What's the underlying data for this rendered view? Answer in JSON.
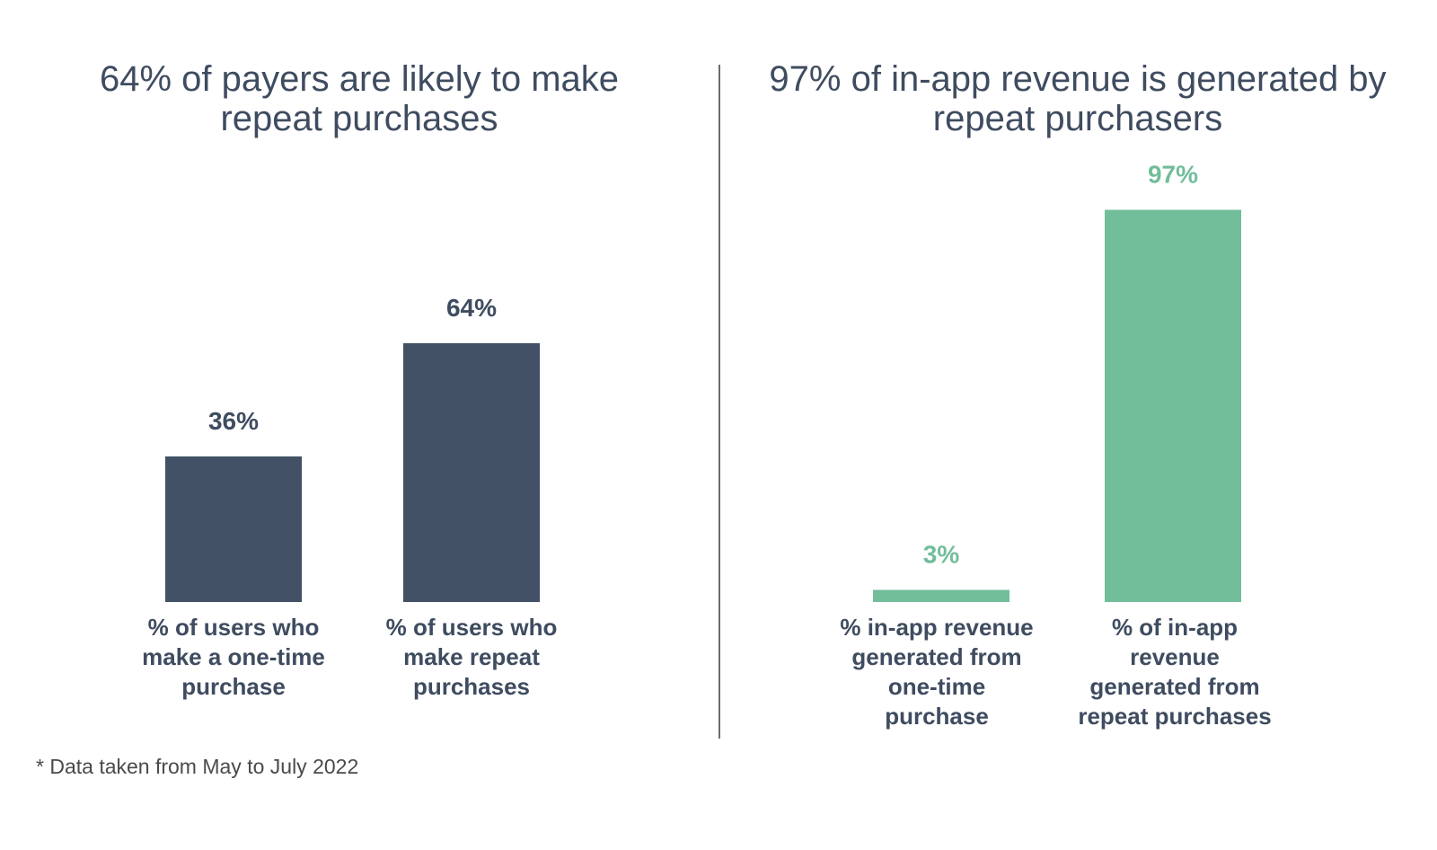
{
  "footnote": "* Data taken from May to July 2022",
  "chart_data": [
    {
      "type": "bar",
      "title": "64% of payers are likely to make repeat purchases",
      "categories": [
        "% of users who make a one-time purchase",
        "% of users who make repeat purchases"
      ],
      "values": [
        36,
        64
      ],
      "value_labels": [
        "36%",
        "64%"
      ],
      "unit": "%",
      "ylim": [
        0,
        100
      ],
      "color": "#425166",
      "label_color": "#3f4c60",
      "grid": false,
      "xlabel": "",
      "ylabel": ""
    },
    {
      "type": "bar",
      "title": "97% of in-app revenue is generated by repeat purchasers",
      "categories": [
        "% in-app revenue generated from one-time purchase",
        "% of in-app revenue generated from repeat purchases"
      ],
      "values": [
        3,
        97
      ],
      "value_labels": [
        "3%",
        "97%"
      ],
      "unit": "%",
      "ylim": [
        0,
        100
      ],
      "color": "#72bd9a",
      "label_color": "#72bd9a",
      "grid": false,
      "xlabel": "",
      "ylabel": ""
    }
  ]
}
